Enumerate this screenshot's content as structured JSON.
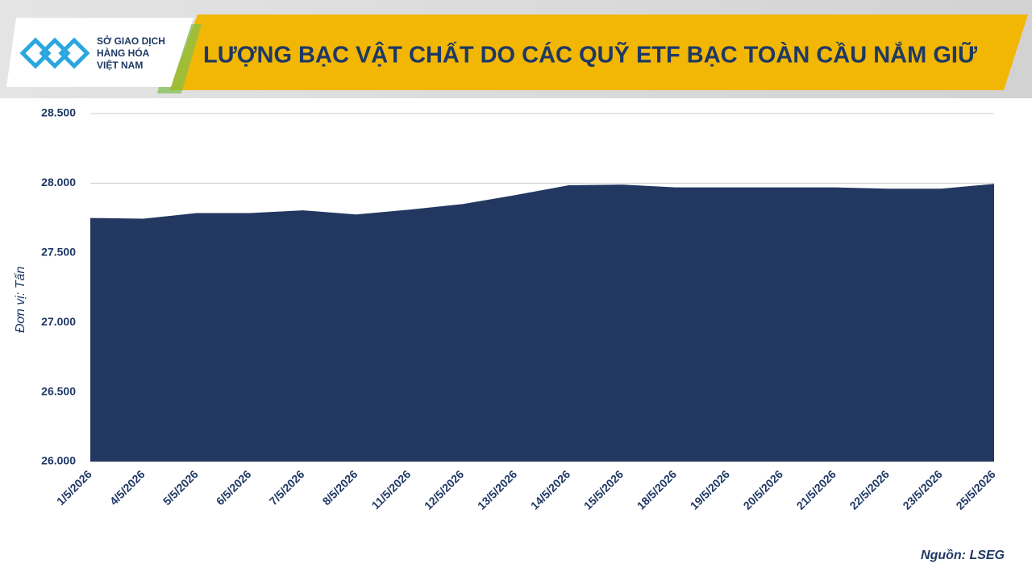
{
  "chart_data": {
    "type": "area",
    "title": "LƯỢNG BẠC VẬT CHẤT DO CÁC QUỸ ETF BẠC TOÀN CẦU NẮM GIỮ",
    "logo_text": [
      "SỞ GIAO DỊCH",
      "HÀNG HÓA",
      "VIỆT NAM"
    ],
    "y_label": "Đơn vị: Tấn",
    "source": "Nguồn: LSEG",
    "categories": [
      "1/5/2026",
      "4/5/2026",
      "5/5/2026",
      "6/5/2026",
      "7/5/2026",
      "8/5/2026",
      "11/5/2026",
      "12/5/2026",
      "13/5/2026",
      "14/5/2026",
      "15/5/2026",
      "18/5/2026",
      "19/5/2026",
      "20/5/2026",
      "21/5/2026",
      "22/5/2026",
      "23/5/2026",
      "25/5/2026"
    ],
    "values": [
      27750,
      27745,
      27785,
      27785,
      27805,
      27775,
      27810,
      27850,
      27915,
      27985,
      27990,
      27970,
      27970,
      27970,
      27970,
      27960,
      27960,
      27995
    ],
    "color": "#223861",
    "ylim": [
      26000,
      28500
    ],
    "yticks": [
      {
        "value": 26000,
        "label": "26.000"
      },
      {
        "value": 26500,
        "label": "26.500"
      },
      {
        "value": 27000,
        "label": "27.000"
      },
      {
        "value": 27500,
        "label": "27.500"
      },
      {
        "value": 28000,
        "label": "28.000"
      },
      {
        "value": 28500,
        "label": "28.500"
      }
    ],
    "grid": true
  }
}
